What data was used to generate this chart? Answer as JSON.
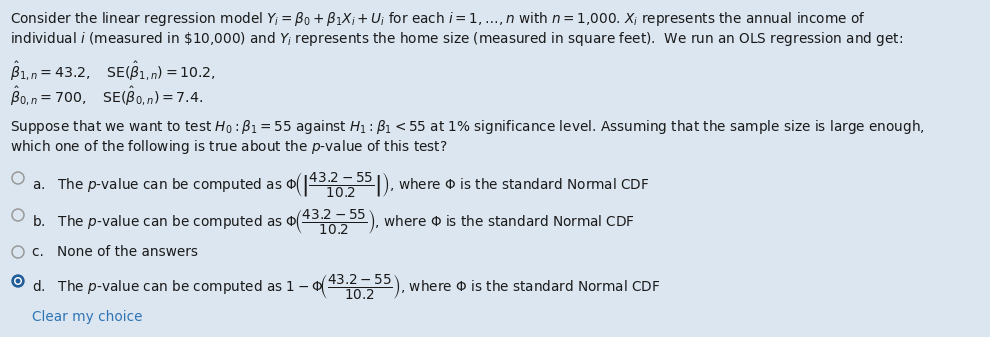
{
  "background_color": "#dce6f0",
  "text_color": "#1a1a1a",
  "blue_color": "#1F5C99",
  "link_color": "#2E74B5",
  "fig_width": 9.9,
  "fig_height": 3.37,
  "dpi": 100
}
